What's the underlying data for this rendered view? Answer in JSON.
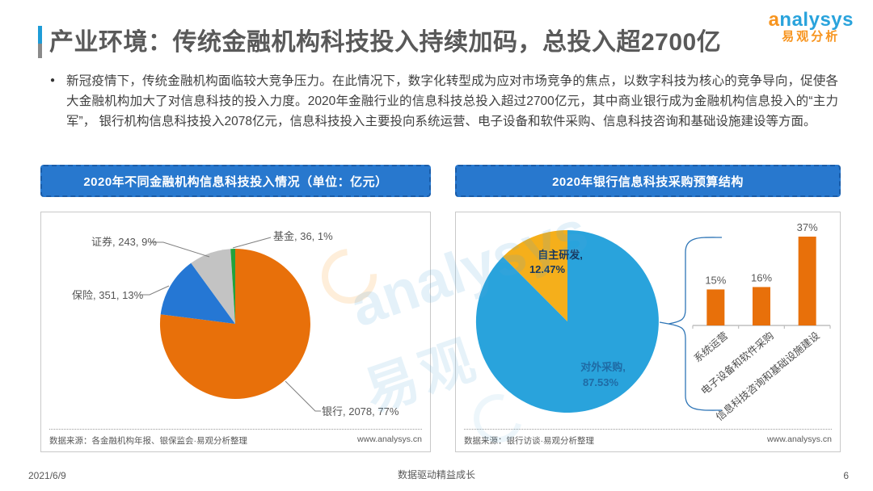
{
  "page": {
    "title": "产业环境：传统金融机构科技投入持续加码，总投入超2700亿",
    "logo": {
      "en": "analysys",
      "cn": "易观分析"
    },
    "bullet": "●",
    "intro": "新冠疫情下，传统金融机构面临较大竞争压力。在此情况下，数字化转型成为应对市场竞争的焦点，以数字科技为核心的竞争导向，促使各大金融机构加大了对信息科技的投入力度。2020年金融行业的信息科技总投入超过2700亿元，其中商业银行成为金融机构信息投入的“主力军”， 银行机构信息科技投入2078亿元，信息科技投入主要投向系统运营、电子设备和软件采购、信息科技咨询和基础设施建设等方面。",
    "watermark": {
      "en": "analysys",
      "cn": "易观"
    },
    "footer": {
      "date": "2021/6/9",
      "slogan": "数据驱动精益成长",
      "page_number": "6"
    }
  },
  "left_panel": {
    "header": "2020年不同金融机构信息科技投入情况（单位：亿元）",
    "source": "数据来源：各金融机构年报、银保监会·易观分析整理",
    "website": "www.analysys.cn"
  },
  "right_panel": {
    "header": "2020年银行信息科技采购预算结构",
    "source": "数据来源：银行访谈·易观分析整理",
    "website": "www.analysys.cn"
  },
  "colors": {
    "chart_header_bar": "#2878CE",
    "bank_orange": "#E8700A",
    "insurance_blue": "#2577D4",
    "securities_gray": "#C3C3C3",
    "fund_green": "#22A23C",
    "outsourcing_blue": "#29A3DC",
    "inhouse_yellow": "#F5AF1B",
    "brace_blue": "#2E75B6"
  },
  "chart_data": [
    {
      "panel": "left",
      "type": "pie",
      "title": "2020年不同金融机构信息科技投入情况（单位：亿元）",
      "unit": "亿元",
      "slices": [
        {
          "label": "银行",
          "value": 2078,
          "percent": 77,
          "display": "银行, 2078, 77%",
          "color": "#E8700A"
        },
        {
          "label": "保险",
          "value": 351,
          "percent": 13,
          "display": "保险, 351, 13%",
          "color": "#2577D4"
        },
        {
          "label": "证券",
          "value": 243,
          "percent": 9,
          "display": "证券, 243, 9%",
          "color": "#C3C3C3"
        },
        {
          "label": "基金",
          "value": 36,
          "percent": 1,
          "display": "基金, 36, 1%",
          "color": "#22A23C"
        }
      ]
    },
    {
      "panel": "right",
      "type": "pie",
      "title": "2020年银行信息科技采购预算结构",
      "slices": [
        {
          "label": "对外采购",
          "value": 87.53,
          "percent": 87.53,
          "display_lines": [
            "对外采购,",
            "87.53%"
          ],
          "color": "#29A3DC",
          "text_color": "#1F6BA5"
        },
        {
          "label": "自主研发",
          "value": 12.47,
          "percent": 12.47,
          "display_lines": [
            "自主研发,",
            "12.47%"
          ],
          "color": "#F5AF1B",
          "text_color": "#17375E"
        }
      ]
    },
    {
      "panel": "right",
      "type": "bar",
      "categories": [
        "系统运营",
        "电子设备和软件采购",
        "信息科技咨询和基础设施建设"
      ],
      "values": [
        15,
        16,
        37
      ],
      "value_labels": [
        "15%",
        "16%",
        "37%"
      ],
      "bar_color": "#E8700A",
      "ylim": [
        0,
        40
      ],
      "grid": false
    }
  ]
}
